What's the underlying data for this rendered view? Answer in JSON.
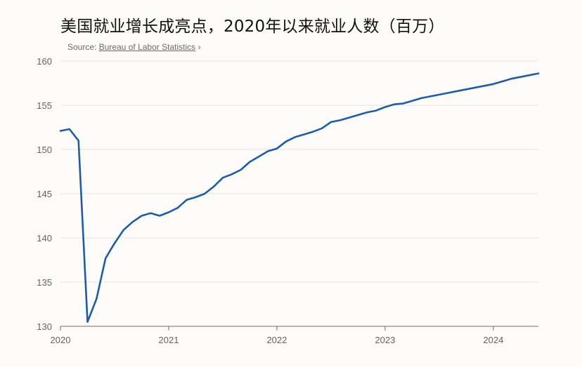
{
  "title": "美国就业增长成亮点，2020年以来就业人数（百万）",
  "source": {
    "prefix": "Source:",
    "link_text": "Bureau of Labor Statistics",
    "suffix": "›"
  },
  "colors": {
    "line": "#1f5da0",
    "grid": "#e6e2dd",
    "axis": "#6e6a66",
    "background": "#fdfcfa"
  },
  "chart_data": {
    "type": "line",
    "title": "",
    "xlabel": "",
    "ylabel": "",
    "ylim": [
      130,
      160
    ],
    "xlim": [
      "2020-01",
      "2024-06"
    ],
    "yticks": [
      130,
      135,
      140,
      145,
      150,
      155,
      160
    ],
    "xticks": [
      "2020",
      "2021",
      "2022",
      "2023",
      "2024"
    ],
    "grid": "horizontal",
    "legend": "none",
    "series": [
      {
        "x": [
          "2020-01",
          "2020-02",
          "2020-03",
          "2020-04",
          "2020-05",
          "2020-06",
          "2020-07",
          "2020-08",
          "2020-09",
          "2020-10",
          "2020-11",
          "2020-12",
          "2021-01",
          "2021-02",
          "2021-03",
          "2021-04",
          "2021-05",
          "2021-06",
          "2021-07",
          "2021-08",
          "2021-09",
          "2021-10",
          "2021-11",
          "2021-12",
          "2022-01",
          "2022-02",
          "2022-03",
          "2022-04",
          "2022-05",
          "2022-06",
          "2022-07",
          "2022-08",
          "2022-09",
          "2022-10",
          "2022-11",
          "2022-12",
          "2023-01",
          "2023-02",
          "2023-03",
          "2023-04",
          "2023-05",
          "2023-06",
          "2023-07",
          "2023-08",
          "2023-09",
          "2023-10",
          "2023-11",
          "2023-12",
          "2024-01",
          "2024-02",
          "2024-03",
          "2024-04",
          "2024-05",
          "2024-06"
        ],
        "values": [
          152.1,
          152.3,
          151.0,
          130.5,
          133.1,
          137.7,
          139.4,
          140.9,
          141.8,
          142.5,
          142.8,
          142.5,
          142.9,
          143.4,
          144.3,
          144.6,
          145.0,
          145.8,
          146.8,
          147.2,
          147.7,
          148.6,
          149.2,
          149.8,
          150.1,
          150.9,
          151.4,
          151.7,
          152.0,
          152.4,
          153.1,
          153.3,
          153.6,
          153.9,
          154.2,
          154.4,
          154.8,
          155.1,
          155.2,
          155.5,
          155.8,
          156.0,
          156.2,
          156.4,
          156.6,
          156.8,
          157.0,
          157.2,
          157.4,
          157.7,
          158.0,
          158.2,
          158.4,
          158.6
        ]
      }
    ]
  }
}
